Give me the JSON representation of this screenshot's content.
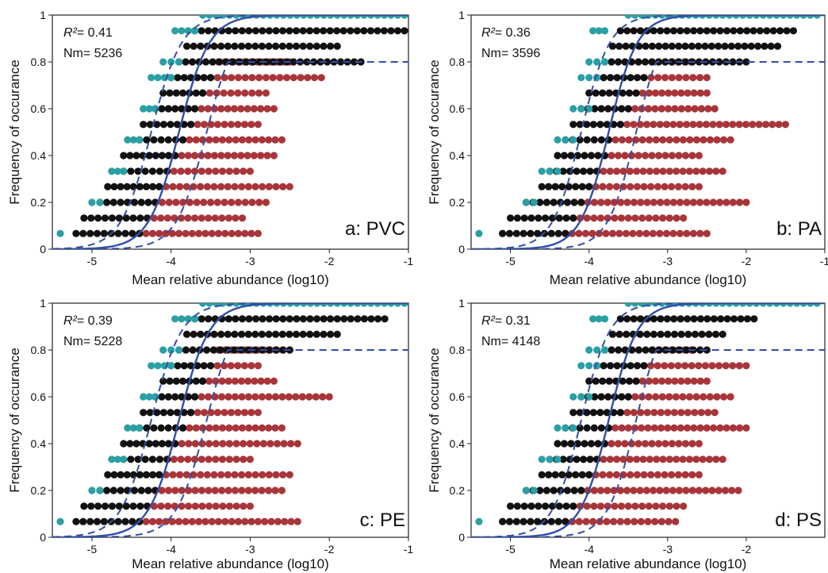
{
  "colors": {
    "common": "#2aa0a4",
    "core": "#111111",
    "rare": "#a8353a",
    "fit": "#2f4fa8",
    "axis": "#222222"
  },
  "chart_data": [
    {
      "type": "scatter",
      "panel_label": "a: PVC",
      "r2_label": "R²= 0.41",
      "r2_symbol": "R²",
      "r2_value": "= 0.41",
      "nm_label": "Nm= 5236",
      "xlabel": "Mean relative abundance (log10)",
      "ylabel": "Frequency of occurance",
      "xlim": [
        -5.5,
        -1
      ],
      "ylim": [
        0,
        1
      ],
      "xticks": [
        "-5",
        "-4",
        "-3",
        "-2",
        "-1"
      ],
      "xtick_values": [
        -5,
        -4,
        -3,
        -2,
        -1
      ],
      "yticks": [
        "0",
        "0.2",
        "0.4",
        "0.6",
        "0.8",
        "1"
      ],
      "ytick_values": [
        0,
        0.2,
        0.4,
        0.6,
        0.8,
        1
      ],
      "fit": {
        "center": -3.9,
        "slope": 5.2,
        "upper_offset": 0.35,
        "lower_offset": -0.35,
        "dashed_at": 0.8
      },
      "series": [
        {
          "color_key": "common",
          "rows": [
            [
              0.067,
              -5.4,
              -5.4
            ],
            [
              0.2,
              -5.0,
              -4.9
            ],
            [
              0.333,
              -4.75,
              -4.6
            ],
            [
              0.467,
              -4.55,
              -4.4
            ],
            [
              0.6,
              -4.35,
              -4.2
            ],
            [
              0.733,
              -4.25,
              -4.0
            ],
            [
              0.8,
              -4.1,
              -3.9
            ],
            [
              0.933,
              -3.95,
              -3.7
            ],
            [
              1.0,
              -3.6,
              -1.05
            ]
          ]
        },
        {
          "color_key": "core",
          "rows": [
            [
              0.067,
              -5.2,
              -4.4
            ],
            [
              0.133,
              -5.1,
              -4.3
            ],
            [
              0.2,
              -4.9,
              -4.2
            ],
            [
              0.267,
              -4.8,
              -4.15
            ],
            [
              0.333,
              -4.6,
              -4.05
            ],
            [
              0.4,
              -4.6,
              -3.95
            ],
            [
              0.467,
              -4.4,
              -3.85
            ],
            [
              0.533,
              -4.35,
              -3.75
            ],
            [
              0.6,
              -4.2,
              -3.7
            ],
            [
              0.667,
              -4.1,
              -3.6
            ],
            [
              0.733,
              -4.0,
              -3.5
            ],
            [
              0.8,
              -3.9,
              -1.6
            ],
            [
              0.867,
              -3.8,
              -1.9
            ],
            [
              0.933,
              -3.7,
              -1.05
            ]
          ]
        },
        {
          "color_key": "rare",
          "rows": [
            [
              0.067,
              -4.4,
              -2.9
            ],
            [
              0.133,
              -4.3,
              -3.1
            ],
            [
              0.2,
              -4.2,
              -2.8
            ],
            [
              0.267,
              -4.15,
              -2.5
            ],
            [
              0.333,
              -4.05,
              -3.0
            ],
            [
              0.4,
              -3.95,
              -2.7
            ],
            [
              0.467,
              -3.85,
              -2.6
            ],
            [
              0.533,
              -3.75,
              -2.9
            ],
            [
              0.6,
              -3.7,
              -2.7
            ],
            [
              0.667,
              -3.6,
              -2.8
            ],
            [
              0.733,
              -3.5,
              -2.1
            ],
            [
              0.8,
              -3.4,
              -2.5
            ]
          ]
        }
      ]
    },
    {
      "type": "scatter",
      "panel_label": "b: PA",
      "r2_label": "R²= 0.36",
      "r2_symbol": "R²",
      "r2_value": "= 0.36",
      "nm_label": "Nm= 3596",
      "xlabel": "Mean relative abundance (log10)",
      "ylabel": "Frequency of occurance",
      "xlim": [
        -5.5,
        -1
      ],
      "ylim": [
        0,
        1
      ],
      "xticks": [
        "-5",
        "-4",
        "-3",
        "-2",
        "-1"
      ],
      "xtick_values": [
        -5,
        -4,
        -3,
        -2,
        -1
      ],
      "yticks": [
        "0",
        "0.2",
        "0.4",
        "0.6",
        "0.8",
        "1"
      ],
      "ytick_values": [
        0,
        0.2,
        0.4,
        0.6,
        0.8,
        1
      ],
      "fit": {
        "center": -3.75,
        "slope": 5.5,
        "upper_offset": 0.35,
        "lower_offset": -0.35,
        "dashed_at": 0.8
      },
      "series": [
        {
          "color_key": "common",
          "rows": [
            [
              0.067,
              -5.4,
              -5.4
            ],
            [
              0.2,
              -4.8,
              -4.7
            ],
            [
              0.333,
              -4.6,
              -4.4
            ],
            [
              0.467,
              -4.4,
              -4.2
            ],
            [
              0.6,
              -4.2,
              -4.0
            ],
            [
              0.733,
              -4.1,
              -3.9
            ],
            [
              0.8,
              -4.0,
              -3.8
            ],
            [
              0.933,
              -3.95,
              -3.8
            ],
            [
              1.0,
              -3.5,
              -1.1
            ]
          ]
        },
        {
          "color_key": "core",
          "rows": [
            [
              0.067,
              -5.1,
              -4.3
            ],
            [
              0.133,
              -5.0,
              -4.2
            ],
            [
              0.2,
              -4.8,
              -4.1
            ],
            [
              0.267,
              -4.6,
              -4.0
            ],
            [
              0.333,
              -4.5,
              -3.9
            ],
            [
              0.4,
              -4.4,
              -3.8
            ],
            [
              0.467,
              -4.3,
              -3.75
            ],
            [
              0.533,
              -4.2,
              -3.6
            ],
            [
              0.6,
              -4.1,
              -3.5
            ],
            [
              0.667,
              -4.0,
              -3.4
            ],
            [
              0.733,
              -3.9,
              -3.3
            ],
            [
              0.8,
              -3.8,
              -2.0
            ],
            [
              0.867,
              -3.7,
              -1.6
            ],
            [
              0.933,
              -3.6,
              -1.4
            ]
          ]
        },
        {
          "color_key": "rare",
          "rows": [
            [
              0.067,
              -4.3,
              -2.5
            ],
            [
              0.133,
              -4.2,
              -2.8
            ],
            [
              0.2,
              -4.1,
              -2.0
            ],
            [
              0.267,
              -4.0,
              -2.6
            ],
            [
              0.333,
              -3.9,
              -2.3
            ],
            [
              0.4,
              -3.8,
              -2.6
            ],
            [
              0.467,
              -3.75,
              -2.2
            ],
            [
              0.533,
              -3.6,
              -1.5
            ],
            [
              0.6,
              -3.5,
              -2.4
            ],
            [
              0.667,
              -3.4,
              -2.5
            ],
            [
              0.733,
              -3.3,
              -2.5
            ],
            [
              0.8,
              -3.2,
              -2.7
            ]
          ]
        }
      ]
    },
    {
      "type": "scatter",
      "panel_label": "c: PE",
      "r2_label": "R²= 0.39",
      "r2_symbol": "R²",
      "r2_value": "= 0.39",
      "nm_label": "Nm= 5228",
      "xlabel": "Mean relative abundance (log10)",
      "ylabel": "Frequency of occurance",
      "xlim": [
        -5.5,
        -1
      ],
      "ylim": [
        0,
        1
      ],
      "xticks": [
        "-5",
        "-4",
        "-3",
        "-2",
        "-1"
      ],
      "xtick_values": [
        -5,
        -4,
        -3,
        -2,
        -1
      ],
      "yticks": [
        "0",
        "0.2",
        "0.4",
        "0.6",
        "0.8",
        "1"
      ],
      "ytick_values": [
        0,
        0.2,
        0.4,
        0.6,
        0.8,
        1
      ],
      "fit": {
        "center": -3.9,
        "slope": 5.2,
        "upper_offset": 0.35,
        "lower_offset": -0.35,
        "dashed_at": 0.8
      },
      "series": [
        {
          "color_key": "common",
          "rows": [
            [
              0.067,
              -5.4,
              -5.4
            ],
            [
              0.2,
              -5.0,
              -4.9
            ],
            [
              0.333,
              -4.75,
              -4.6
            ],
            [
              0.467,
              -4.55,
              -4.4
            ],
            [
              0.6,
              -4.35,
              -4.2
            ],
            [
              0.733,
              -4.25,
              -4.0
            ],
            [
              0.8,
              -4.1,
              -3.9
            ],
            [
              0.933,
              -3.95,
              -3.7
            ],
            [
              1.0,
              -3.6,
              -1.05
            ]
          ]
        },
        {
          "color_key": "core",
          "rows": [
            [
              0.067,
              -5.2,
              -4.4
            ],
            [
              0.133,
              -5.1,
              -4.3
            ],
            [
              0.2,
              -4.9,
              -4.2
            ],
            [
              0.267,
              -4.8,
              -4.15
            ],
            [
              0.333,
              -4.6,
              -4.05
            ],
            [
              0.4,
              -4.6,
              -3.95
            ],
            [
              0.467,
              -4.4,
              -3.85
            ],
            [
              0.533,
              -4.35,
              -3.75
            ],
            [
              0.6,
              -4.2,
              -3.7
            ],
            [
              0.667,
              -4.1,
              -3.6
            ],
            [
              0.733,
              -4.0,
              -3.5
            ],
            [
              0.8,
              -3.9,
              -2.5
            ],
            [
              0.867,
              -3.8,
              -1.9
            ],
            [
              0.933,
              -3.7,
              -1.3
            ]
          ]
        },
        {
          "color_key": "rare",
          "rows": [
            [
              0.067,
              -4.4,
              -2.4
            ],
            [
              0.133,
              -4.3,
              -3.0
            ],
            [
              0.2,
              -4.2,
              -2.6
            ],
            [
              0.267,
              -4.15,
              -2.5
            ],
            [
              0.333,
              -4.05,
              -3.0
            ],
            [
              0.4,
              -3.95,
              -2.4
            ],
            [
              0.467,
              -3.85,
              -2.6
            ],
            [
              0.533,
              -3.75,
              -2.9
            ],
            [
              0.6,
              -3.7,
              -2.0
            ],
            [
              0.667,
              -3.6,
              -2.7
            ],
            [
              0.733,
              -3.5,
              -2.9
            ],
            [
              0.8,
              -3.4,
              -2.5
            ]
          ]
        }
      ]
    },
    {
      "type": "scatter",
      "panel_label": "d: PS",
      "r2_label": "R²= 0.31",
      "r2_symbol": "R²",
      "r2_value": "= 0.31",
      "nm_label": "Nm= 4148",
      "xlabel": "Mean relative abundance (log10)",
      "ylabel": "Frequency of occurance",
      "xlim": [
        -5.5,
        -1
      ],
      "ylim": [
        0,
        1
      ],
      "xticks": [
        "-5",
        "-4",
        "-3",
        "-2"
      ],
      "xtick_values": [
        -5,
        -4,
        -3,
        -2
      ],
      "yticks": [
        "0",
        "0.2",
        "0.4",
        "0.6",
        "0.8",
        "1"
      ],
      "ytick_values": [
        0,
        0.2,
        0.4,
        0.6,
        0.8,
        1
      ],
      "fit": {
        "center": -3.75,
        "slope": 5.5,
        "upper_offset": 0.35,
        "lower_offset": -0.35,
        "dashed_at": 0.8
      },
      "series": [
        {
          "color_key": "common",
          "rows": [
            [
              0.067,
              -5.4,
              -5.4
            ],
            [
              0.2,
              -4.8,
              -4.7
            ],
            [
              0.333,
              -4.6,
              -4.4
            ],
            [
              0.467,
              -4.4,
              -4.2
            ],
            [
              0.6,
              -4.2,
              -4.0
            ],
            [
              0.733,
              -4.1,
              -3.9
            ],
            [
              0.8,
              -4.0,
              -3.8
            ],
            [
              0.933,
              -3.95,
              -3.8
            ],
            [
              1.0,
              -3.5,
              -1.1
            ]
          ]
        },
        {
          "color_key": "core",
          "rows": [
            [
              0.067,
              -5.1,
              -4.3
            ],
            [
              0.133,
              -5.0,
              -4.2
            ],
            [
              0.2,
              -4.8,
              -4.1
            ],
            [
              0.267,
              -4.6,
              -4.0
            ],
            [
              0.333,
              -4.5,
              -3.9
            ],
            [
              0.4,
              -4.4,
              -3.8
            ],
            [
              0.467,
              -4.3,
              -3.75
            ],
            [
              0.533,
              -4.2,
              -3.6
            ],
            [
              0.6,
              -4.1,
              -3.5
            ],
            [
              0.667,
              -4.0,
              -3.4
            ],
            [
              0.733,
              -3.9,
              -3.3
            ],
            [
              0.8,
              -3.8,
              -2.5
            ],
            [
              0.867,
              -3.7,
              -2.3
            ],
            [
              0.933,
              -3.6,
              -1.9
            ]
          ]
        },
        {
          "color_key": "rare",
          "rows": [
            [
              0.067,
              -4.3,
              -2.9
            ],
            [
              0.133,
              -4.2,
              -2.8
            ],
            [
              0.2,
              -4.1,
              -2.1
            ],
            [
              0.267,
              -4.0,
              -2.6
            ],
            [
              0.333,
              -3.9,
              -2.3
            ],
            [
              0.4,
              -3.8,
              -2.6
            ],
            [
              0.467,
              -3.75,
              -2.0
            ],
            [
              0.533,
              -3.6,
              -2.4
            ],
            [
              0.6,
              -3.5,
              -2.2
            ],
            [
              0.667,
              -3.4,
              -2.5
            ],
            [
              0.733,
              -3.3,
              -2.0
            ],
            [
              0.8,
              -3.2,
              -2.7
            ]
          ]
        }
      ]
    }
  ]
}
